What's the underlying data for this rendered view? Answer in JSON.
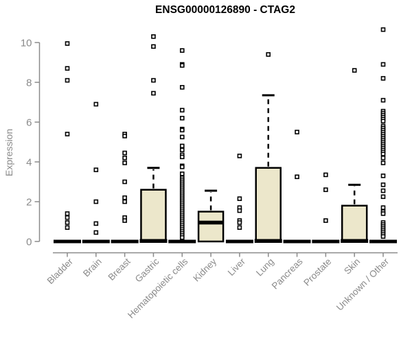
{
  "title": "ENSG00000126890 - CTAG2",
  "chart_data": {
    "type": "boxplot",
    "title": "ENSG00000126890 - CTAG2",
    "xlabel": "",
    "ylabel": "Expression",
    "ylim": [
      0,
      10.8
    ],
    "yticks": [
      0,
      2,
      4,
      6,
      8,
      10
    ],
    "ytick_labels": [
      "0",
      "2",
      "4",
      "6",
      "8",
      "10"
    ],
    "grid": false,
    "legend": "none",
    "colors": {
      "box_fill": "#ece7cb",
      "box_stroke": "#000000",
      "axis": "#8a8a8a",
      "tick_text": "#8a8a8a",
      "title_text": "#000000",
      "outlier_fill": "#ffffff",
      "outlier_stroke": "#000000"
    },
    "categories": [
      "Bladder",
      "Brain",
      "Breast",
      "Gastric",
      "Hematopoietic cells",
      "Kidney",
      "Liver",
      "Lung",
      "Pancreas",
      "Prostate",
      "Skin",
      "Unknown / Other"
    ],
    "boxes": [
      {
        "name": "Bladder",
        "q1": 0,
        "median": 0,
        "q3": 0,
        "whisker_low": 0,
        "whisker_high": 0,
        "outliers": [
          9.95,
          8.7,
          8.1,
          5.4,
          1.4,
          1.2,
          0.95,
          0.7
        ]
      },
      {
        "name": "Brain",
        "q1": 0,
        "median": 0,
        "q3": 0,
        "whisker_low": 0,
        "whisker_high": 0,
        "outliers": [
          6.9,
          3.6,
          2.0,
          0.9,
          0.45
        ]
      },
      {
        "name": "Breast",
        "q1": 0,
        "median": 0,
        "q3": 0,
        "whisker_low": 0,
        "whisker_high": 0,
        "outliers": [
          5.4,
          5.3,
          4.45,
          4.2,
          3.95,
          3.0,
          2.2,
          2.0,
          1.2,
          1.05
        ]
      },
      {
        "name": "Gastric",
        "q1": 0,
        "median": 0,
        "q3": 2.6,
        "whisker_low": 0,
        "whisker_high": 3.7,
        "outliers": [
          10.3,
          9.8,
          8.1,
          7.45
        ]
      },
      {
        "name": "Hematopoietic cells",
        "q1": 0,
        "median": 0,
        "q3": 0,
        "whisker_low": 0,
        "whisker_high": 0,
        "outliers": [
          9.6,
          8.9,
          8.85,
          7.75,
          6.6,
          6.2,
          5.65,
          5.6,
          5.25,
          4.8,
          4.6,
          4.35,
          4.25,
          3.8,
          3.75,
          3.4,
          3.2,
          3.1,
          3.0,
          2.9,
          2.8,
          2.7,
          2.6,
          2.5,
          2.4,
          2.3,
          2.2,
          2.1,
          2.0,
          1.9,
          1.8,
          1.7,
          1.6,
          1.5,
          1.4,
          1.3,
          1.2,
          1.1,
          1.0,
          0.9,
          0.8,
          0.7,
          0.6,
          0.5,
          0.4,
          0.3,
          0.2
        ]
      },
      {
        "name": "Kidney",
        "q1": 0,
        "median": 0.95,
        "q3": 1.5,
        "whisker_low": 0,
        "whisker_high": 2.55,
        "outliers": []
      },
      {
        "name": "Liver",
        "q1": 0,
        "median": 0,
        "q3": 0,
        "whisker_low": 0,
        "whisker_high": 0,
        "outliers": [
          4.3,
          2.15,
          1.7,
          1.55,
          1.05,
          0.95,
          0.7
        ]
      },
      {
        "name": "Lung",
        "q1": 0,
        "median": 0,
        "q3": 3.7,
        "whisker_low": 0,
        "whisker_high": 7.35,
        "outliers": [
          9.4
        ]
      },
      {
        "name": "Pancreas",
        "q1": 0,
        "median": 0,
        "q3": 0,
        "whisker_low": 0,
        "whisker_high": 0,
        "outliers": [
          5.5,
          3.25
        ]
      },
      {
        "name": "Prostate",
        "q1": 0,
        "median": 0,
        "q3": 0,
        "whisker_low": 0,
        "whisker_high": 0,
        "outliers": [
          3.35,
          2.6,
          1.05
        ]
      },
      {
        "name": "Skin",
        "q1": 0,
        "median": 0,
        "q3": 1.8,
        "whisker_low": 0,
        "whisker_high": 2.85,
        "outliers": [
          8.6
        ]
      },
      {
        "name": "Unknown / Other",
        "q1": 0,
        "median": 0,
        "q3": 0,
        "whisker_low": 0,
        "whisker_high": 0,
        "outliers": [
          10.65,
          8.9,
          8.2,
          7.1,
          6.55,
          6.45,
          6.35,
          6.25,
          6.15,
          6.05,
          5.8,
          5.7,
          5.6,
          5.5,
          5.4,
          5.3,
          5.2,
          5.1,
          5.0,
          4.9,
          4.8,
          4.7,
          4.6,
          4.5,
          4.4,
          4.2,
          3.95,
          3.3,
          2.85,
          2.55,
          2.25,
          1.7,
          1.5,
          1.4,
          0.95,
          0.85,
          0.75,
          0.65,
          0.55,
          0.45,
          0.35,
          0.25
        ]
      }
    ]
  }
}
